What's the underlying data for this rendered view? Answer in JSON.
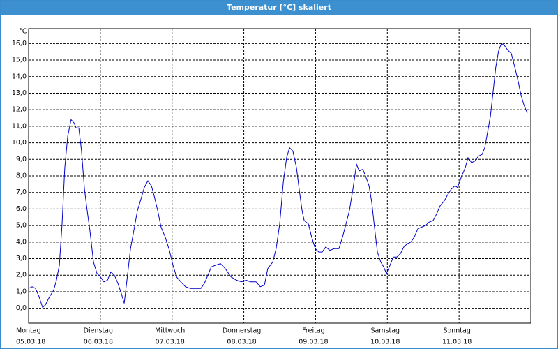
{
  "chart_data": {
    "type": "line",
    "title": "Temperatur [°C] skaliert",
    "y_label": "°C",
    "xlim": [
      0,
      168
    ],
    "xticks": [
      {
        "value": 0,
        "label": "Montag"
      },
      {
        "value": 24,
        "label": "Dienstag"
      },
      {
        "value": 48,
        "label": "Mittwoch"
      },
      {
        "value": 72,
        "label": "Donnerstag"
      },
      {
        "value": 96,
        "label": "Freitag"
      },
      {
        "value": 120,
        "label": "Samstag"
      },
      {
        "value": 144,
        "label": "Sonntag"
      }
    ],
    "xtick_dates": [
      "05.03.18",
      "06.03.18",
      "07.03.18",
      "08.03.18",
      "09.03.18",
      "10.03.18",
      "11.03.18"
    ],
    "ylim": [
      -0.9,
      16.9
    ],
    "yticks": [
      {
        "value": 0,
        "label": "0,0"
      },
      {
        "value": 1,
        "label": "1,0"
      },
      {
        "value": 2,
        "label": "2,0"
      },
      {
        "value": 3,
        "label": "3,0"
      },
      {
        "value": 4,
        "label": "4,0"
      },
      {
        "value": 5,
        "label": "5,0"
      },
      {
        "value": 6,
        "label": "6,0"
      },
      {
        "value": 7,
        "label": "7,0"
      },
      {
        "value": 8,
        "label": "8,0"
      },
      {
        "value": 9,
        "label": "9,0"
      },
      {
        "value": 10,
        "label": "10,0"
      },
      {
        "value": 11,
        "label": "11,0"
      },
      {
        "value": 12,
        "label": "12,0"
      },
      {
        "value": 13,
        "label": "13,0"
      },
      {
        "value": 14,
        "label": "14,0"
      },
      {
        "value": 15,
        "label": "15,0"
      },
      {
        "value": 16,
        "label": "16,0"
      }
    ],
    "grid": true,
    "series": [
      {
        "color": "#0000c8",
        "x": [
          0,
          1.2,
          2.3,
          3.5,
          4.7,
          5.6,
          7,
          8.4,
          9.3,
          10.3,
          11.2,
          12.1,
          13.1,
          14.2,
          15.2,
          15.9,
          16.8,
          17.7,
          18.7,
          19.6,
          20.5,
          21.7,
          22.9,
          24,
          25.2,
          26.4,
          27.5,
          28.7,
          29.9,
          31,
          32,
          32.9,
          34.1,
          35.2,
          36.4,
          37.6,
          38.7,
          39.9,
          41.1,
          42,
          43.2,
          44.3,
          45.7,
          47.1,
          48.3,
          49.5,
          50.9,
          52.5,
          54.1,
          56,
          57.6,
          58.8,
          60,
          61.1,
          62.5,
          64.2,
          65.8,
          67.7,
          69.5,
          71.2,
          72.8,
          74.2,
          76.1,
          77.5,
          78.9,
          80,
          81.7,
          82.8,
          84,
          85.2,
          86.3,
          87.3,
          88.4,
          89.6,
          90.5,
          91.5,
          92.2,
          93.6,
          94.7,
          95.9,
          97.1,
          98.2,
          99.4,
          100.8,
          102.2,
          103.8,
          105,
          106.2,
          107.3,
          108.5,
          109.7,
          110.6,
          111.8,
          112.7,
          113.9,
          114.8,
          115.7,
          116.7,
          117.8,
          118.8,
          119.7,
          120.9,
          122,
          123.2,
          124.4,
          125.5,
          126.7,
          127.9,
          129,
          130.2,
          131.4,
          132.8,
          133.9,
          135.3,
          136.5,
          137.7,
          139.1,
          140,
          141.4,
          142.6,
          143.5,
          144.7,
          146.1,
          147,
          148.2,
          149.3,
          150.5,
          151.7,
          152.6,
          153.5,
          154.5,
          155.4,
          156.3,
          157.3,
          158.2,
          159.1,
          160.3,
          161.5,
          162.6,
          163.8,
          164.7,
          165.7,
          166.8
        ],
        "values": [
          1.2,
          1.3,
          1.2,
          0.7,
          0.05,
          0.2,
          0.7,
          1.1,
          1.7,
          2.6,
          5.1,
          8.5,
          10.4,
          11.4,
          11.2,
          10.9,
          10.9,
          9.5,
          7.2,
          5.9,
          4.7,
          2.8,
          2.1,
          1.9,
          1.6,
          1.7,
          2.2,
          2.0,
          1.5,
          0.9,
          0.3,
          1.7,
          3.6,
          4.7,
          5.9,
          6.6,
          7.3,
          7.7,
          7.4,
          6.8,
          5.9,
          4.9,
          4.3,
          3.5,
          2.6,
          1.9,
          1.6,
          1.3,
          1.2,
          1.2,
          1.2,
          1.5,
          2.0,
          2.5,
          2.6,
          2.7,
          2.4,
          1.9,
          1.7,
          1.6,
          1.7,
          1.6,
          1.6,
          1.3,
          1.4,
          2.4,
          2.8,
          3.6,
          5.1,
          7.6,
          9.1,
          9.7,
          9.5,
          8.5,
          7.2,
          5.9,
          5.3,
          5.1,
          4.3,
          3.6,
          3.4,
          3.4,
          3.7,
          3.5,
          3.6,
          3.6,
          4.3,
          5.1,
          5.9,
          7.2,
          8.7,
          8.3,
          8.4,
          8.0,
          7.4,
          6.4,
          4.9,
          3.4,
          2.8,
          2.5,
          2.1,
          2.6,
          3.1,
          3.1,
          3.3,
          3.7,
          3.9,
          4.0,
          4.3,
          4.8,
          4.9,
          5.0,
          5.2,
          5.3,
          5.7,
          6.2,
          6.5,
          6.8,
          7.2,
          7.4,
          7.3,
          7.9,
          8.5,
          9.1,
          8.8,
          8.9,
          9.2,
          9.3,
          9.7,
          10.6,
          11.6,
          13.1,
          14.6,
          15.6,
          16.0,
          15.9,
          15.6,
          15.4,
          14.6,
          13.7,
          12.9,
          12.3,
          11.8
        ]
      }
    ]
  }
}
